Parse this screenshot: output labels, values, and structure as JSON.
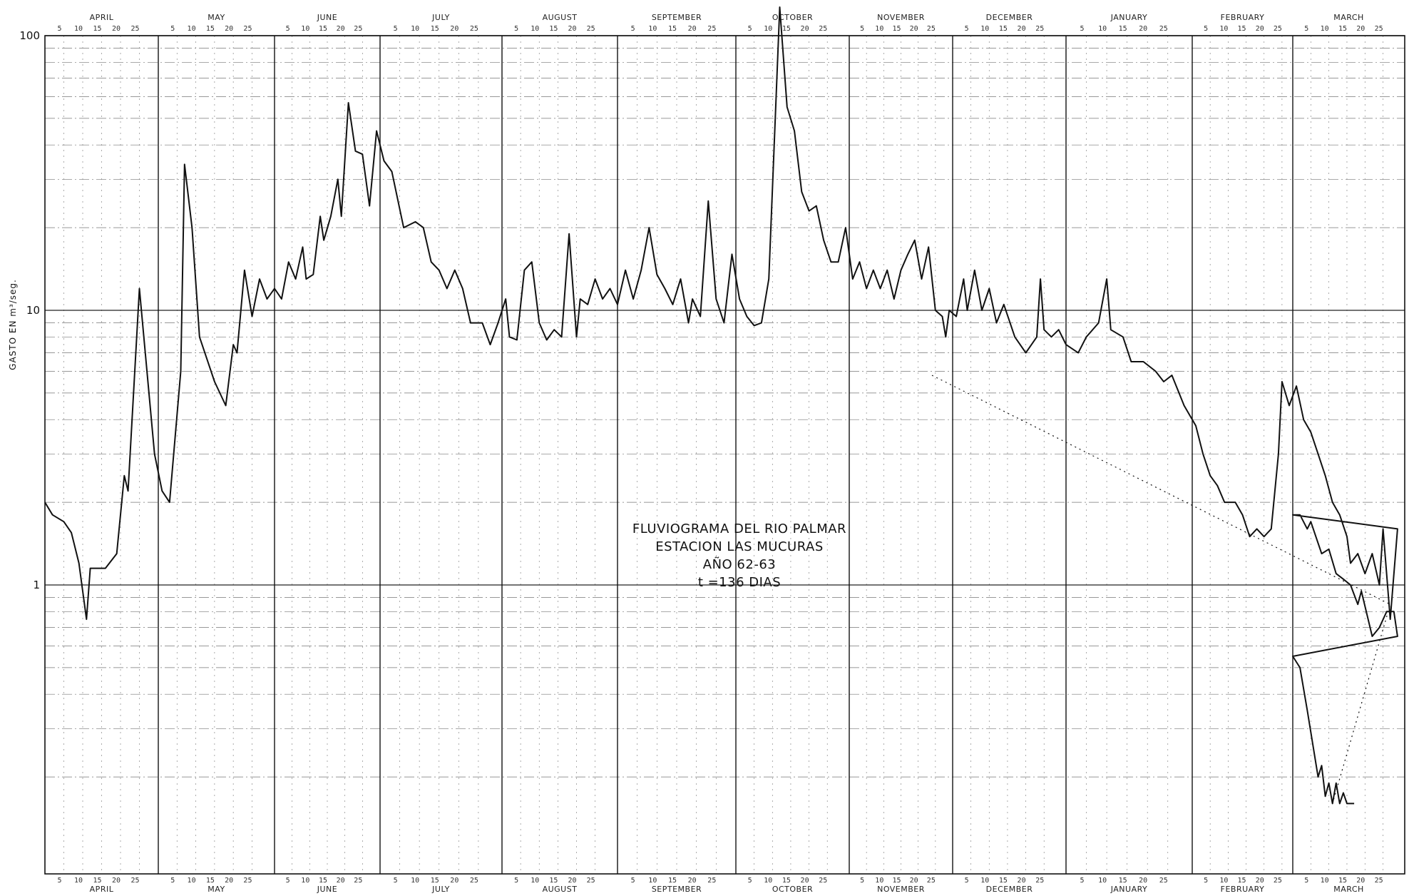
{
  "chart_data": {
    "type": "line",
    "xlabel": "",
    "ylabel": "GASTO EN m³/seg.",
    "yscale": "log",
    "ylim": [
      0.15,
      100
    ],
    "yticks": [
      "100",
      "10",
      "1"
    ],
    "grid": true,
    "months": [
      {
        "name": "APRIL",
        "days": 30
      },
      {
        "name": "MAY",
        "days": 31
      },
      {
        "name": "JUNE",
        "days": 30
      },
      {
        "name": "JULY",
        "days": 31
      },
      {
        "name": "AUGUST",
        "days": 31
      },
      {
        "name": "SEPTEMBER",
        "days": 30
      },
      {
        "name": "OCTOBER",
        "days": 31
      },
      {
        "name": "NOVEMBER",
        "days": 30
      },
      {
        "name": "DECEMBER",
        "days": 31
      },
      {
        "name": "JANUARY",
        "days": 31
      },
      {
        "name": "FEBRUARY",
        "days": 28
      },
      {
        "name": "MARCH",
        "days": 31
      }
    ],
    "day_ticks": [
      "5",
      "10",
      "15",
      "20",
      "25"
    ],
    "annotation": [
      "FLUVIOGRAMA DEL RIO PALMAR",
      "ESTACION LAS MUCURAS",
      "AÑO 62-63",
      "t =136 DIAS"
    ],
    "series": [
      {
        "points": [
          [
            "1962-04-01",
            2.0
          ],
          [
            "1962-04-03",
            1.8
          ],
          [
            "1962-04-06",
            1.7
          ],
          [
            "1962-04-08",
            1.55
          ],
          [
            "1962-04-10",
            1.2
          ],
          [
            "1962-04-12",
            0.75
          ],
          [
            "1962-04-13",
            1.15
          ],
          [
            "1962-04-17",
            1.15
          ],
          [
            "1962-04-20",
            1.3
          ],
          [
            "1962-04-22",
            2.5
          ],
          [
            "1962-04-23",
            2.2
          ],
          [
            "1962-04-26",
            12.0
          ],
          [
            "1962-04-28",
            6.0
          ],
          [
            "1962-04-30",
            3.0
          ],
          [
            "1962-05-02",
            2.2
          ],
          [
            "1962-05-04",
            2.0
          ],
          [
            "1962-05-07",
            6.0
          ],
          [
            "1962-05-08",
            34.0
          ],
          [
            "1962-05-10",
            20.0
          ],
          [
            "1962-05-12",
            8.0
          ],
          [
            "1962-05-16",
            5.5
          ],
          [
            "1962-05-19",
            4.5
          ],
          [
            "1962-05-21",
            7.5
          ],
          [
            "1962-05-22",
            7.0
          ],
          [
            "1962-05-24",
            14.0
          ],
          [
            "1962-05-26",
            9.5
          ],
          [
            "1962-05-28",
            13.0
          ],
          [
            "1962-05-30",
            11.0
          ],
          [
            "1962-06-01",
            12.0
          ],
          [
            "1962-06-03",
            11.0
          ],
          [
            "1962-06-05",
            15.0
          ],
          [
            "1962-06-07",
            13.0
          ],
          [
            "1962-06-09",
            17.0
          ],
          [
            "1962-06-10",
            13.0
          ],
          [
            "1962-06-12",
            13.5
          ],
          [
            "1962-06-14",
            22.0
          ],
          [
            "1962-06-15",
            18.0
          ],
          [
            "1962-06-17",
            22.0
          ],
          [
            "1962-06-19",
            30.0
          ],
          [
            "1962-06-20",
            22.0
          ],
          [
            "1962-06-22",
            57.0
          ],
          [
            "1962-06-24",
            38.0
          ],
          [
            "1962-06-26",
            37.0
          ],
          [
            "1962-06-28",
            24.0
          ],
          [
            "1962-06-30",
            45.0
          ],
          [
            "1962-07-02",
            35.0
          ],
          [
            "1962-07-04",
            32.0
          ],
          [
            "1962-07-07",
            20.0
          ],
          [
            "1962-07-10",
            21.0
          ],
          [
            "1962-07-12",
            20.0
          ],
          [
            "1962-07-14",
            15.0
          ],
          [
            "1962-07-16",
            14.0
          ],
          [
            "1962-07-18",
            12.0
          ],
          [
            "1962-07-20",
            14.0
          ],
          [
            "1962-07-22",
            12.0
          ],
          [
            "1962-07-24",
            9.0
          ],
          [
            "1962-07-27",
            9.0
          ],
          [
            "1962-07-29",
            7.5
          ],
          [
            "1962-07-31",
            9.0
          ],
          [
            "1962-08-02",
            11.0
          ],
          [
            "1962-08-03",
            8.0
          ],
          [
            "1962-08-05",
            7.8
          ],
          [
            "1962-08-07",
            14.0
          ],
          [
            "1962-08-09",
            15.0
          ],
          [
            "1962-08-11",
            9.0
          ],
          [
            "1962-08-13",
            7.8
          ],
          [
            "1962-08-15",
            8.5
          ],
          [
            "1962-08-17",
            8.0
          ],
          [
            "1962-08-19",
            19.0
          ],
          [
            "1962-08-21",
            8.0
          ],
          [
            "1962-08-22",
            11.0
          ],
          [
            "1962-08-24",
            10.5
          ],
          [
            "1962-08-26",
            13.0
          ],
          [
            "1962-08-28",
            11.0
          ],
          [
            "1962-08-30",
            12.0
          ],
          [
            "1962-09-01",
            10.5
          ],
          [
            "1962-09-03",
            14.0
          ],
          [
            "1962-09-05",
            11.0
          ],
          [
            "1962-09-07",
            14.0
          ],
          [
            "1962-09-09",
            20.0
          ],
          [
            "1962-09-11",
            13.5
          ],
          [
            "1962-09-13",
            12.0
          ],
          [
            "1962-09-15",
            10.5
          ],
          [
            "1962-09-17",
            13.0
          ],
          [
            "1962-09-19",
            9.0
          ],
          [
            "1962-09-20",
            11.0
          ],
          [
            "1962-09-22",
            9.5
          ],
          [
            "1962-09-24",
            25.0
          ],
          [
            "1962-09-26",
            11.0
          ],
          [
            "1962-09-28",
            9.0
          ],
          [
            "1962-09-30",
            16.0
          ],
          [
            "1962-10-02",
            11.0
          ],
          [
            "1962-10-04",
            9.5
          ],
          [
            "1962-10-06",
            8.8
          ],
          [
            "1962-10-08",
            9.0
          ],
          [
            "1962-10-10",
            13.0
          ],
          [
            "1962-10-13",
            140.0
          ],
          [
            "1962-10-15",
            55.0
          ],
          [
            "1962-10-17",
            45.0
          ],
          [
            "1962-10-19",
            27.0
          ],
          [
            "1962-10-21",
            23.0
          ],
          [
            "1962-10-23",
            24.0
          ],
          [
            "1962-10-25",
            18.0
          ],
          [
            "1962-10-27",
            15.0
          ],
          [
            "1962-10-29",
            15.0
          ],
          [
            "1962-10-31",
            20.0
          ],
          [
            "1962-11-02",
            13.0
          ],
          [
            "1962-11-04",
            15.0
          ],
          [
            "1962-11-06",
            12.0
          ],
          [
            "1962-11-08",
            14.0
          ],
          [
            "1962-11-10",
            12.0
          ],
          [
            "1962-11-12",
            14.0
          ],
          [
            "1962-11-14",
            11.0
          ],
          [
            "1962-11-16",
            14.0
          ],
          [
            "1962-11-18",
            16.0
          ],
          [
            "1962-11-20",
            18.0
          ],
          [
            "1962-11-22",
            13.0
          ],
          [
            "1962-11-24",
            17.0
          ],
          [
            "1962-11-26",
            10.0
          ],
          [
            "1962-11-28",
            9.5
          ],
          [
            "1962-11-29",
            8.0
          ],
          [
            "1962-11-30",
            10.0
          ],
          [
            "1962-12-02",
            9.5
          ],
          [
            "1962-12-04",
            13.0
          ],
          [
            "1962-12-05",
            10.0
          ],
          [
            "1962-12-07",
            14.0
          ],
          [
            "1962-12-09",
            10.0
          ],
          [
            "1962-12-11",
            12.0
          ],
          [
            "1962-12-13",
            9.0
          ],
          [
            "1962-12-15",
            10.5
          ],
          [
            "1962-12-18",
            8.0
          ],
          [
            "1962-12-21",
            7.0
          ],
          [
            "1962-12-24",
            8.0
          ],
          [
            "1962-12-25",
            13.0
          ],
          [
            "1962-12-26",
            8.5
          ],
          [
            "1962-12-28",
            8.0
          ],
          [
            "1962-12-30",
            8.5
          ],
          [
            "1963-01-01",
            7.5
          ],
          [
            "1963-01-04",
            7.0
          ],
          [
            "1963-01-06",
            8.0
          ],
          [
            "1963-01-09",
            9.0
          ],
          [
            "1963-01-11",
            13.0
          ],
          [
            "1963-01-12",
            8.5
          ],
          [
            "1963-01-15",
            8.0
          ],
          [
            "1963-01-17",
            6.5
          ],
          [
            "1963-01-20",
            6.5
          ],
          [
            "1963-01-23",
            6.0
          ],
          [
            "1963-01-25",
            5.5
          ],
          [
            "1963-01-27",
            5.8
          ],
          [
            "1963-01-30",
            4.5
          ],
          [
            "1963-02-02",
            3.8
          ],
          [
            "1963-02-04",
            3.0
          ],
          [
            "1963-02-06",
            2.5
          ],
          [
            "1963-02-08",
            2.3
          ],
          [
            "1963-02-10",
            2.0
          ],
          [
            "1963-02-13",
            2.0
          ],
          [
            "1963-02-15",
            1.8
          ],
          [
            "1963-02-17",
            1.5
          ],
          [
            "1963-02-19",
            1.6
          ],
          [
            "1963-02-21",
            1.5
          ],
          [
            "1963-02-23",
            1.6
          ],
          [
            "1963-02-25",
            3.0
          ],
          [
            "1963-02-26",
            5.5
          ],
          [
            "1963-02-28",
            4.5
          ],
          [
            "1963-03-02",
            5.3
          ],
          [
            "1963-03-04",
            4.0
          ],
          [
            "1963-03-06",
            3.6
          ],
          [
            "1963-03-08",
            3.0
          ],
          [
            "1963-03-10",
            2.5
          ],
          [
            "1963-03-12",
            2.0
          ],
          [
            "1963-03-14",
            1.8
          ],
          [
            "1963-03-16",
            1.5
          ],
          [
            "1963-03-17",
            1.2
          ],
          [
            "1963-03-19",
            1.3
          ],
          [
            "1963-03-21",
            1.1
          ],
          [
            "1963-03-23",
            1.3
          ],
          [
            "1963-03-25",
            1.0
          ],
          [
            "1963-03-26",
            1.6
          ],
          [
            "1963-03-28",
            0.75
          ],
          [
            "1963-03-30",
            1.6
          ],
          [
            "1963-04-01",
            1.8
          ],
          [
            "1963-04-03",
            1.8
          ],
          [
            "1963-04-05",
            1.6
          ],
          [
            "1963-04-06",
            1.7
          ],
          [
            "1963-04-09",
            1.3
          ],
          [
            "1963-04-11",
            1.35
          ],
          [
            "1963-04-13",
            1.1
          ],
          [
            "1963-04-15",
            1.05
          ],
          [
            "1963-04-17",
            1.0
          ],
          [
            "1963-04-19",
            0.85
          ],
          [
            "1963-04-20",
            0.95
          ],
          [
            "1963-04-23",
            0.65
          ],
          [
            "1963-04-25",
            0.7
          ],
          [
            "1963-04-27",
            0.8
          ],
          [
            "1963-04-29",
            0.8
          ],
          [
            "1963-04-30",
            0.65
          ],
          [
            "1963-05-01",
            0.55
          ],
          [
            "1963-05-03",
            0.5
          ],
          [
            "1963-05-05",
            0.35
          ],
          [
            "1963-05-08",
            0.2
          ],
          [
            "1963-05-09",
            0.22
          ],
          [
            "1963-05-10",
            0.17
          ],
          [
            "1963-05-11",
            0.19
          ],
          [
            "1963-05-12",
            0.16
          ],
          [
            "1963-05-13",
            0.19
          ],
          [
            "1963-05-14",
            0.16
          ],
          [
            "1963-05-15",
            0.175
          ],
          [
            "1963-05-16",
            0.16
          ],
          [
            "1963-05-18",
            0.16
          ]
        ]
      },
      {
        "style": "dotted",
        "points": [
          [
            "1962-11-25",
            5.8
          ],
          [
            "1963-03-28",
            0.85
          ],
          [
            "1963-05-12",
            0.16
          ]
        ]
      }
    ]
  }
}
